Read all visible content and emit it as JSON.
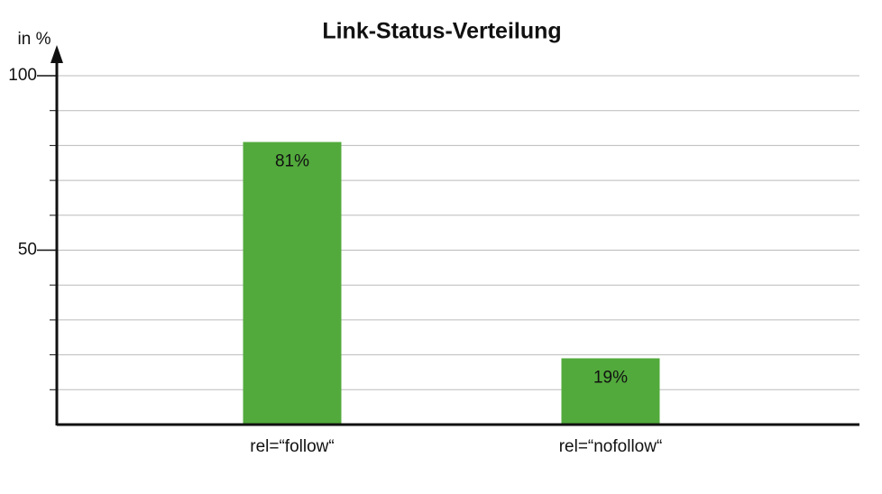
{
  "chart_data": {
    "type": "bar",
    "title": "Link-Status-Verteilung",
    "y_label": "in %",
    "categories": [
      "rel=“follow“",
      "rel=“nofollow“"
    ],
    "values": [
      81,
      19
    ],
    "value_labels": [
      "81%",
      "19%"
    ],
    "color": "#52aa3c",
    "ylim": [
      0,
      100
    ],
    "yticks": [
      50,
      100
    ],
    "minor_yticks": [
      10,
      20,
      30,
      40,
      50,
      60,
      70,
      80,
      90,
      100
    ],
    "grid": true
  }
}
